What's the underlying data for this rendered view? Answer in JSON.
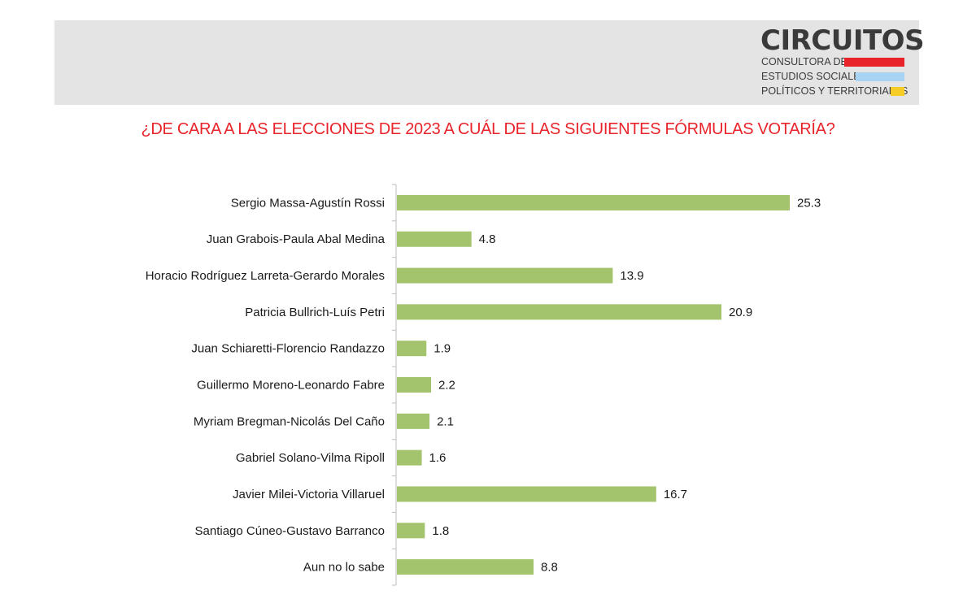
{
  "header": {
    "brand": "CIRCUITOS",
    "lines": [
      "CONSULTORA DE",
      "ESTUDIOS SOCIALES,",
      "POLÍTICOS Y TERRITORIALES"
    ],
    "stripe_colors": [
      "#e8232a",
      "#a9d3f2",
      "#f5cd26"
    ],
    "band_color": "#e4e4e4"
  },
  "question": "¿DE CARA A LAS ELECCIONES DE 2023 A CUÁL DE LAS SIGUIENTES FÓRMULAS VOTARÍA?",
  "chart_data": {
    "type": "bar",
    "orientation": "horizontal",
    "categories": [
      "Sergio Massa-Agustín Rossi",
      "Juan Grabois-Paula Abal Medina",
      "Horacio Rodríguez Larreta-Gerardo Morales",
      "Patricia Bullrich-Luís Petri",
      "Juan Schiaretti-Florencio Randazzo",
      "Guillermo Moreno-Leonardo Fabre",
      "Myriam Bregman-Nicolás Del Caño",
      "Gabriel Solano-Vilma Ripoll",
      "Javier Milei-Victoria Villaruel",
      "Santiago Cúneo-Gustavo Barranco",
      "Aun no lo sabe"
    ],
    "values": [
      25.3,
      4.8,
      13.9,
      20.9,
      1.9,
      2.2,
      2.1,
      1.6,
      16.7,
      1.8,
      8.8
    ],
    "value_labels": [
      "25.3",
      "4.8",
      "13.9",
      "20.9",
      "1.9",
      "2.2",
      "2.1",
      "1.6",
      "16.7",
      "1.8",
      "8.8"
    ],
    "xlim": [
      0,
      30
    ],
    "bar_color": "#a3c46c",
    "grid": false,
    "legend": false
  }
}
